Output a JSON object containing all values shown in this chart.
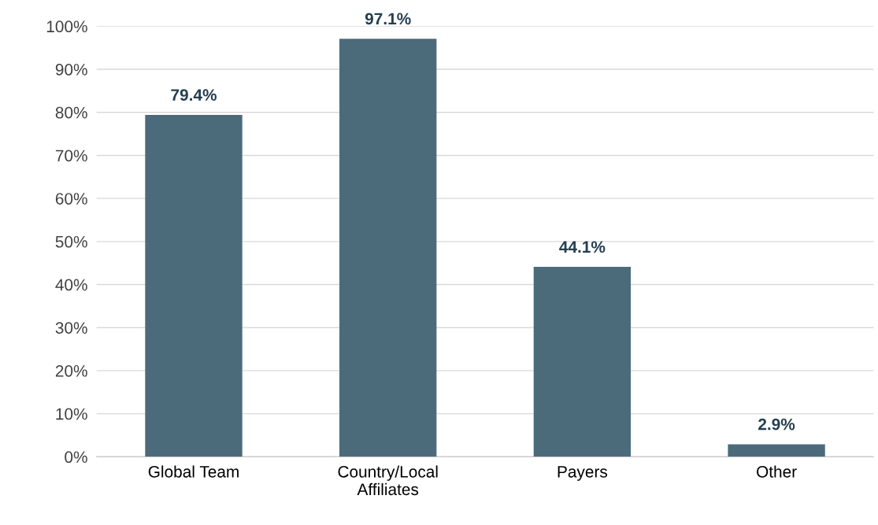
{
  "chart_data": {
    "type": "bar",
    "categories": [
      "Global Team",
      "Country/Local\nAffiliates",
      "Payers",
      "Other"
    ],
    "values": [
      79.4,
      97.1,
      44.1,
      2.9
    ],
    "value_labels": [
      "79.4%",
      "97.1%",
      "44.1%",
      "2.9%"
    ],
    "color": "#4b6b7b",
    "ylim": [
      0,
      100
    ],
    "yticks": [
      {
        "value": 0,
        "label": "0%"
      },
      {
        "value": 10,
        "label": "10%"
      },
      {
        "value": 20,
        "label": "20%"
      },
      {
        "value": 30,
        "label": "30%"
      },
      {
        "value": 40,
        "label": "40%"
      },
      {
        "value": 50,
        "label": "50%"
      },
      {
        "value": 60,
        "label": "60%"
      },
      {
        "value": 70,
        "label": "70%"
      },
      {
        "value": 80,
        "label": "80%"
      },
      {
        "value": 90,
        "label": "90%"
      },
      {
        "value": 100,
        "label": "100%"
      }
    ],
    "grid": "y",
    "legend": false
  }
}
